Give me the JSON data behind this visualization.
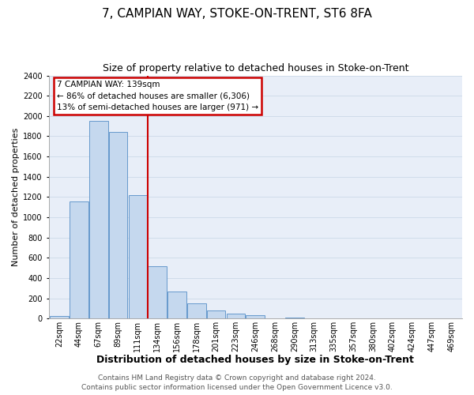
{
  "title": "7, CAMPIAN WAY, STOKE-ON-TRENT, ST6 8FA",
  "subtitle": "Size of property relative to detached houses in Stoke-on-Trent",
  "xlabel": "Distribution of detached houses by size in Stoke-on-Trent",
  "ylabel": "Number of detached properties",
  "bar_labels": [
    "22sqm",
    "44sqm",
    "67sqm",
    "89sqm",
    "111sqm",
    "134sqm",
    "156sqm",
    "178sqm",
    "201sqm",
    "223sqm",
    "246sqm",
    "268sqm",
    "290sqm",
    "313sqm",
    "335sqm",
    "357sqm",
    "380sqm",
    "402sqm",
    "424sqm",
    "447sqm",
    "469sqm"
  ],
  "bar_values": [
    25,
    1155,
    1950,
    1840,
    1220,
    520,
    270,
    150,
    80,
    45,
    35,
    5,
    10,
    5,
    2,
    2,
    1,
    1,
    1,
    1,
    1
  ],
  "bar_color": "#c5d8ee",
  "bar_edge_color": "#6699cc",
  "vline_bar_index": 5,
  "vline_color": "#cc0000",
  "ylim": [
    0,
    2400
  ],
  "yticks": [
    0,
    200,
    400,
    600,
    800,
    1000,
    1200,
    1400,
    1600,
    1800,
    2000,
    2200,
    2400
  ],
  "annotation_title": "7 CAMPIAN WAY: 139sqm",
  "annotation_line1": "← 86% of detached houses are smaller (6,306)",
  "annotation_line2": "13% of semi-detached houses are larger (971) →",
  "footer_line1": "Contains HM Land Registry data © Crown copyright and database right 2024.",
  "footer_line2": "Contains public sector information licensed under the Open Government Licence v3.0.",
  "grid_color": "#d0dcea",
  "background_color": "#e8eef8",
  "fig_bg_color": "#ffffff",
  "title_fontsize": 11,
  "subtitle_fontsize": 9,
  "xlabel_fontsize": 9,
  "ylabel_fontsize": 8,
  "tick_fontsize": 7,
  "footer_fontsize": 6.5
}
